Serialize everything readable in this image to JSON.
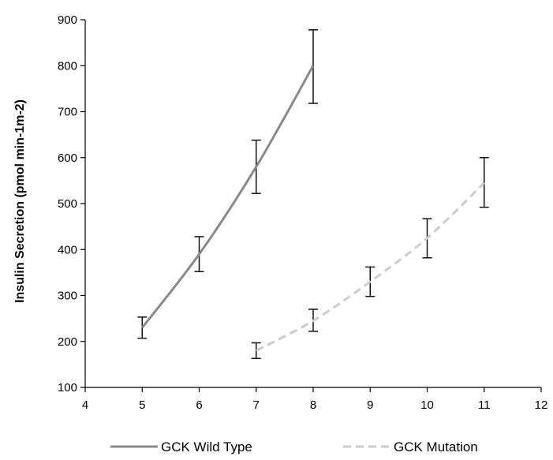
{
  "chart_data": {
    "type": "line",
    "title": "",
    "xlabel": "",
    "ylabel": "Insulin Secretion (pmol min-1m-2)",
    "xlim": [
      4,
      12
    ],
    "ylim": [
      100,
      900
    ],
    "xticks": [
      4,
      5,
      6,
      7,
      8,
      9,
      10,
      11,
      12
    ],
    "yticks": [
      100,
      200,
      300,
      400,
      500,
      600,
      700,
      800,
      900
    ],
    "grid": false,
    "legend_position": "bottom",
    "series": [
      {
        "name": "GCK Wild Type",
        "style": "solid",
        "color": "#8a8a8a",
        "x": [
          5,
          6,
          7,
          8
        ],
        "y": [
          230,
          390,
          580,
          800
        ],
        "error_low": [
          207,
          352,
          522,
          718
        ],
        "error_high": [
          253,
          428,
          638,
          878
        ]
      },
      {
        "name": "GCK Mutation",
        "style": "dashed",
        "color": "#cccccc",
        "x": [
          7,
          8,
          9,
          10,
          11
        ],
        "y": [
          180,
          245,
          330,
          425,
          545
        ],
        "error_low": [
          163,
          222,
          298,
          382,
          492
        ],
        "error_high": [
          197,
          270,
          362,
          467,
          600
        ]
      }
    ]
  }
}
